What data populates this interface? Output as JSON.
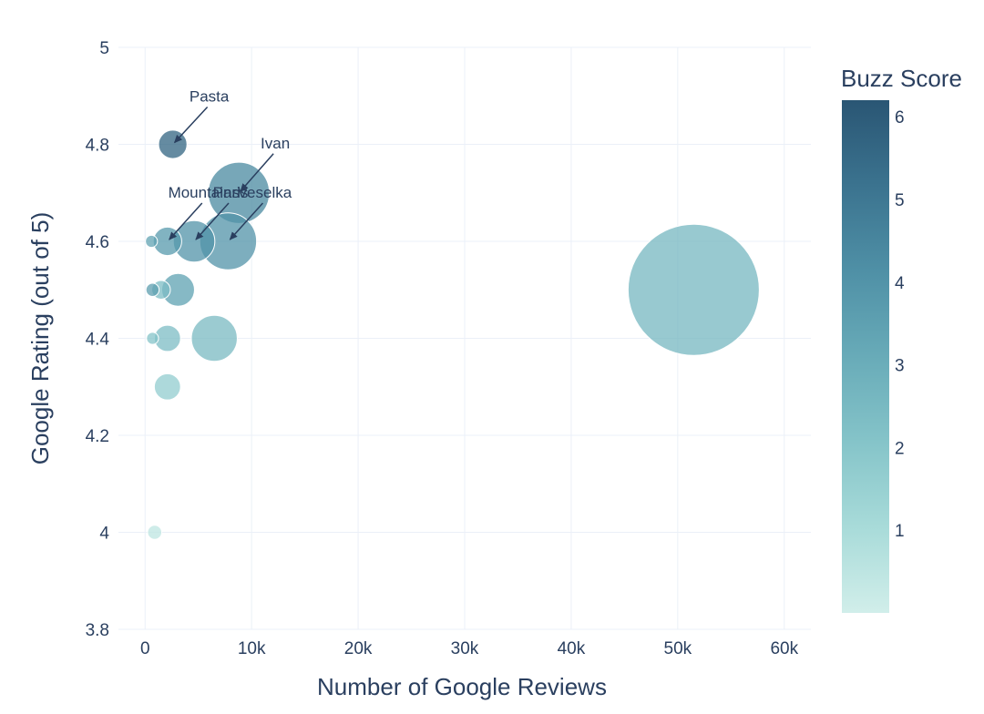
{
  "chart_data": {
    "type": "scatter",
    "subtype": "bubble",
    "title": "",
    "xlabel": "Number of Google Reviews",
    "ylabel": "Google Rating (out of 5)",
    "xlim": [
      -2500,
      62500
    ],
    "ylim": [
      3.8,
      5.0
    ],
    "xticks": [
      0,
      10000,
      20000,
      30000,
      40000,
      50000,
      60000
    ],
    "xtick_labels": [
      "0",
      "10k",
      "20k",
      "30k",
      "40k",
      "50k",
      "60k"
    ],
    "yticks": [
      3.8,
      4.0,
      4.2,
      4.4,
      4.6,
      4.8,
      5.0
    ],
    "ytick_labels": [
      "3.8",
      "4",
      "4.2",
      "4.4",
      "4.6",
      "4.8",
      "5"
    ],
    "grid": true,
    "colorscale": [
      "#d1eeea",
      "#a8dbd9",
      "#85c4c9",
      "#68abb8",
      "#4f90a6",
      "#3b738f",
      "#2a5674"
    ],
    "colorbar": {
      "title": "Buzz Score",
      "range": [
        0,
        6.2
      ],
      "ticks": [
        1,
        2,
        3,
        4,
        5,
        6
      ],
      "tick_labels": [
        "1",
        "2",
        "3",
        "4",
        "5",
        "6"
      ]
    },
    "points": [
      {
        "x": 51500,
        "y": 4.5,
        "size": 6.0,
        "color": 2.6
      },
      {
        "x": 8800,
        "y": 4.7,
        "size": 2.8,
        "color": 4.4
      },
      {
        "x": 7800,
        "y": 4.6,
        "size": 2.6,
        "color": 4.0
      },
      {
        "x": 6500,
        "y": 4.4,
        "size": 2.1,
        "color": 2.5
      },
      {
        "x": 4600,
        "y": 4.6,
        "size": 1.9,
        "color": 4.0
      },
      {
        "x": 3100,
        "y": 4.5,
        "size": 1.5,
        "color": 3.5
      },
      {
        "x": 2600,
        "y": 4.8,
        "size": 1.3,
        "color": 5.7
      },
      {
        "x": 2100,
        "y": 4.6,
        "size": 1.3,
        "color": 3.8
      },
      {
        "x": 2100,
        "y": 4.4,
        "size": 1.2,
        "color": 2.4
      },
      {
        "x": 2100,
        "y": 4.3,
        "size": 1.2,
        "color": 1.7
      },
      {
        "x": 1500,
        "y": 4.5,
        "size": 0.85,
        "color": 2.4
      },
      {
        "x": 700,
        "y": 4.5,
        "size": 0.6,
        "color": 3.6
      },
      {
        "x": 600,
        "y": 4.6,
        "size": 0.55,
        "color": 3.4
      },
      {
        "x": 700,
        "y": 4.4,
        "size": 0.55,
        "color": 2.1
      },
      {
        "x": 900,
        "y": 4.0,
        "size": 0.65,
        "color": 0.5
      }
    ],
    "annotations": [
      {
        "text": "Pasta",
        "x": 2600,
        "y": 4.8
      },
      {
        "text": "Ivan",
        "x": 8800,
        "y": 4.7
      },
      {
        "text": "Mountains",
        "x": 2100,
        "y": 4.6
      },
      {
        "text": "Paris",
        "x": 4600,
        "y": 4.6
      },
      {
        "text": "Veselka",
        "x": 7800,
        "y": 4.6
      }
    ]
  }
}
